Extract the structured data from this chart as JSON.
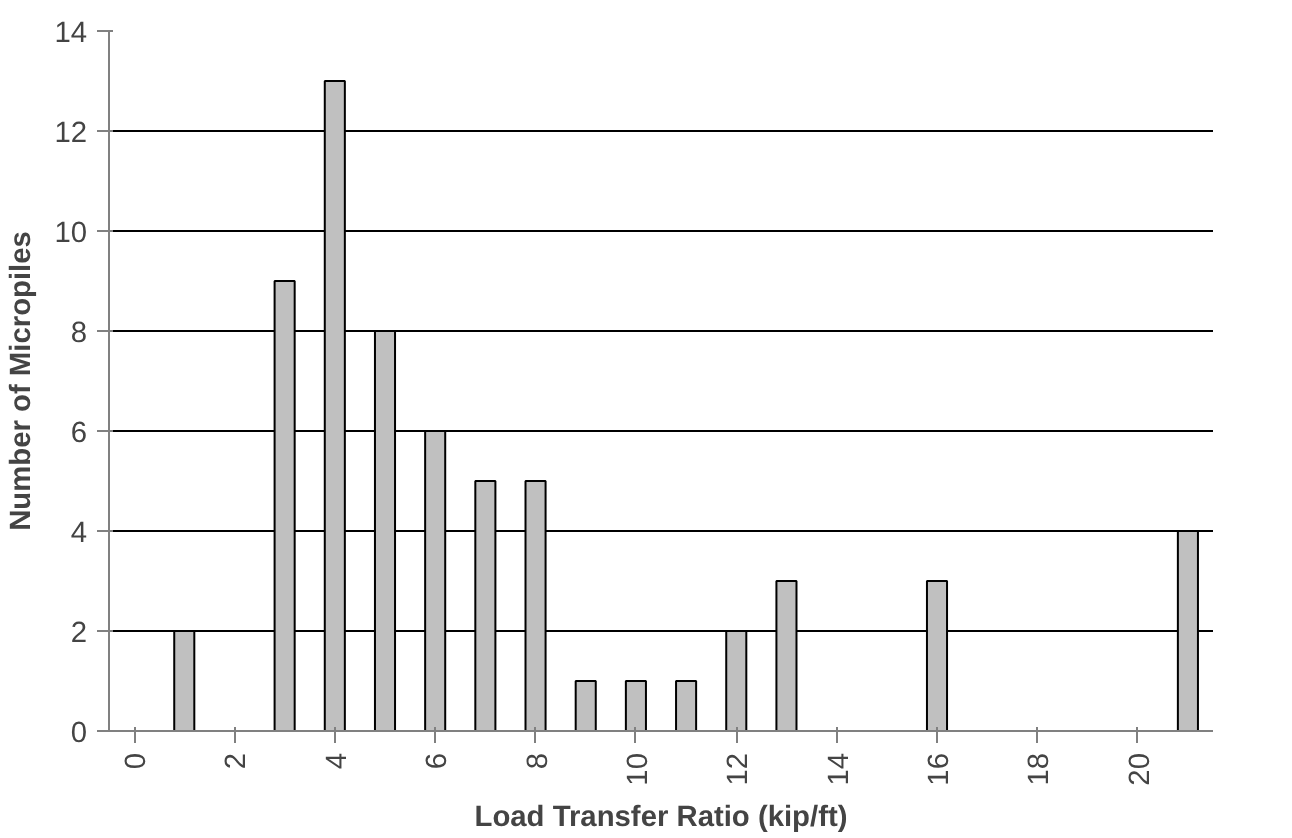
{
  "chart_data": {
    "type": "bar",
    "xlabel": "Load Transfer Ratio (kip/ft)",
    "ylabel": "Number of Micropiles",
    "categories": [
      "0",
      null,
      "2",
      null,
      "4",
      null,
      "6",
      null,
      "8",
      null,
      "10",
      null,
      "12",
      null,
      "14",
      null,
      "16",
      null,
      "18",
      null,
      "20",
      null
    ],
    "values": [
      0,
      2,
      0,
      9,
      13,
      8,
      6,
      5,
      5,
      1,
      1,
      1,
      2,
      3,
      0,
      0,
      3,
      0,
      0,
      0,
      0,
      4
    ],
    "color": "#c0c0c0",
    "ylim": [
      0,
      14
    ],
    "yticks": [
      0,
      2,
      4,
      6,
      8,
      10,
      12,
      14
    ],
    "grid": "y"
  }
}
